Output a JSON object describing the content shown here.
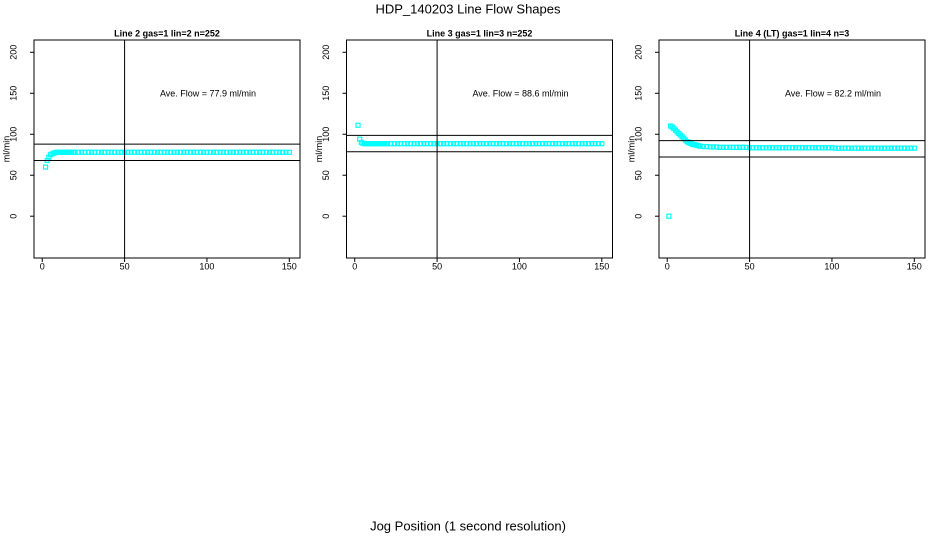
{
  "title": "HDP_140203  Line Flow Shapes",
  "xlabel": "Jog Position (1 second resolution)",
  "chart_data": [
    {
      "type": "scatter",
      "title": "Line 2 gas=1 lin=2 n=252",
      "ylabel": "ml/min",
      "annotation": "Ave. Flow =  77.9  ml/min",
      "color": "#00ffff",
      "x": [
        2,
        3,
        4,
        5,
        6,
        7,
        8,
        9,
        10,
        11,
        12,
        13,
        14,
        15,
        16,
        17,
        18,
        19,
        20,
        22,
        24,
        26,
        28,
        30,
        32,
        34,
        36,
        38,
        40,
        42,
        44,
        46,
        48,
        50,
        52,
        54,
        56,
        58,
        60,
        62,
        64,
        66,
        68,
        70,
        72,
        74,
        76,
        78,
        80,
        82,
        84,
        86,
        88,
        90,
        92,
        94,
        96,
        98,
        100,
        102,
        104,
        106,
        108,
        110,
        112,
        114,
        116,
        118,
        120,
        122,
        124,
        126,
        128,
        130,
        132,
        134,
        136,
        138,
        140,
        142,
        144,
        146,
        148,
        150
      ],
      "values": [
        60,
        68,
        72,
        75,
        76,
        77,
        77.5,
        78,
        78,
        78,
        78,
        78,
        78,
        78,
        78,
        78,
        78,
        78,
        78,
        78,
        78,
        78,
        78,
        78,
        78,
        78,
        78,
        78,
        78,
        78,
        78,
        78,
        78,
        78,
        78,
        78,
        78,
        78,
        78,
        78,
        78,
        78,
        78,
        78,
        78,
        78,
        78,
        78,
        78,
        78,
        78,
        78,
        78,
        78,
        78,
        78,
        78,
        78,
        78,
        78,
        78,
        78,
        78,
        78,
        78,
        78,
        78,
        78,
        78,
        78,
        78,
        78,
        78,
        78,
        78,
        78,
        78,
        78,
        78,
        78,
        78,
        78,
        78,
        78
      ],
      "hlines": [
        87.9,
        67.9
      ],
      "vlines": [
        50
      ],
      "xlim": [
        -5,
        156.5
      ],
      "ylim": [
        -51,
        215
      ],
      "xticks": [
        0,
        50,
        100,
        150
      ],
      "yticks": [
        0,
        50,
        100,
        150,
        200
      ]
    },
    {
      "type": "scatter",
      "title": "Line 3 gas=1 lin=3 n=252",
      "ylabel": "ml/min",
      "annotation": "Ave. Flow =  88.6  ml/min",
      "color": "#00ffff",
      "x": [
        2,
        3,
        4,
        5,
        6,
        7,
        8,
        9,
        10,
        11,
        12,
        13,
        14,
        15,
        16,
        17,
        18,
        19,
        20,
        22,
        24,
        26,
        28,
        30,
        32,
        34,
        36,
        38,
        40,
        42,
        44,
        46,
        48,
        50,
        52,
        54,
        56,
        58,
        60,
        62,
        64,
        66,
        68,
        70,
        72,
        74,
        76,
        78,
        80,
        82,
        84,
        86,
        88,
        90,
        92,
        94,
        96,
        98,
        100,
        102,
        104,
        106,
        108,
        110,
        112,
        114,
        116,
        118,
        120,
        122,
        124,
        126,
        128,
        130,
        132,
        134,
        136,
        138,
        140,
        142,
        144,
        146,
        148,
        150
      ],
      "values": [
        111,
        94,
        90,
        89,
        88.5,
        88.5,
        88.5,
        88.5,
        88.5,
        88.5,
        88.5,
        88.5,
        88.5,
        88.5,
        88.5,
        88.5,
        88.5,
        88.5,
        88.5,
        88.5,
        88.5,
        88.5,
        88.5,
        88.5,
        88.5,
        88.5,
        88.5,
        88.5,
        88.5,
        88.5,
        88.5,
        88.5,
        88.5,
        88.5,
        88.5,
        88.5,
        88.5,
        88.5,
        88.5,
        88.5,
        88.5,
        88.5,
        88.5,
        88.5,
        88.5,
        88.5,
        88.5,
        88.5,
        88.5,
        88.5,
        88.5,
        88.5,
        88.5,
        88.5,
        88.5,
        88.5,
        88.5,
        88.5,
        88.5,
        88.5,
        88.5,
        88.5,
        88.5,
        88.5,
        88.5,
        88.5,
        88.5,
        88.5,
        88.5,
        88.5,
        88.5,
        88.5,
        88.5,
        88.5,
        88.5,
        88.5,
        88.5,
        88.5,
        88.5,
        88.5,
        88.5,
        88.5,
        88.5,
        88.5
      ],
      "hlines": [
        98.6,
        78.6
      ],
      "vlines": [
        50
      ],
      "xlim": [
        -5,
        156.5
      ],
      "ylim": [
        -51,
        215
      ],
      "xticks": [
        0,
        50,
        100,
        150
      ],
      "yticks": [
        0,
        50,
        100,
        150,
        200
      ]
    },
    {
      "type": "scatter",
      "title": "Line 4 (LT) gas=1 lin=4 n=3",
      "ylabel": "ml/min",
      "annotation": "Ave. Flow =  82.2  ml/min",
      "color": "#00ffff",
      "x": [
        1,
        2,
        3,
        4,
        5,
        6,
        7,
        8,
        9,
        10,
        11,
        12,
        13,
        14,
        15,
        16,
        17,
        18,
        19,
        20,
        22,
        24,
        26,
        28,
        30,
        32,
        34,
        36,
        38,
        40,
        42,
        44,
        46,
        48,
        50,
        52,
        54,
        56,
        58,
        60,
        62,
        64,
        66,
        68,
        70,
        72,
        74,
        76,
        78,
        80,
        82,
        84,
        86,
        88,
        90,
        92,
        94,
        96,
        98,
        100,
        102,
        104,
        106,
        108,
        110,
        112,
        114,
        116,
        118,
        120,
        122,
        124,
        126,
        128,
        130,
        132,
        134,
        136,
        138,
        140,
        142,
        144,
        146,
        148,
        150
      ],
      "values": [
        0,
        110,
        109,
        107,
        105,
        103,
        101,
        99,
        97,
        95,
        93,
        91,
        90,
        89,
        88,
        87.5,
        87,
        86.5,
        86,
        85.5,
        85,
        85,
        84.5,
        84.5,
        84.5,
        84,
        84,
        84,
        84,
        84,
        84,
        84,
        84,
        84,
        83.5,
        83.5,
        83.5,
        83.5,
        83.5,
        83.5,
        83.5,
        83.5,
        83.5,
        83.5,
        83.5,
        83.5,
        83.5,
        83.5,
        83.5,
        83.5,
        83.5,
        83.5,
        83.5,
        83.5,
        83.5,
        83.5,
        83.5,
        83.5,
        83.5,
        83.5,
        83,
        83,
        83,
        83,
        83,
        83,
        83,
        83,
        83,
        83,
        83,
        83,
        83,
        83,
        83,
        83,
        83,
        83,
        83,
        83,
        83,
        83,
        83,
        83,
        83
      ],
      "hlines": [
        92.2,
        72.2
      ],
      "vlines": [
        50
      ],
      "xlim": [
        -5,
        156.5
      ],
      "ylim": [
        -51,
        215
      ],
      "xticks": [
        0,
        50,
        100,
        150
      ],
      "yticks": [
        0,
        50,
        100,
        150,
        200
      ]
    }
  ]
}
